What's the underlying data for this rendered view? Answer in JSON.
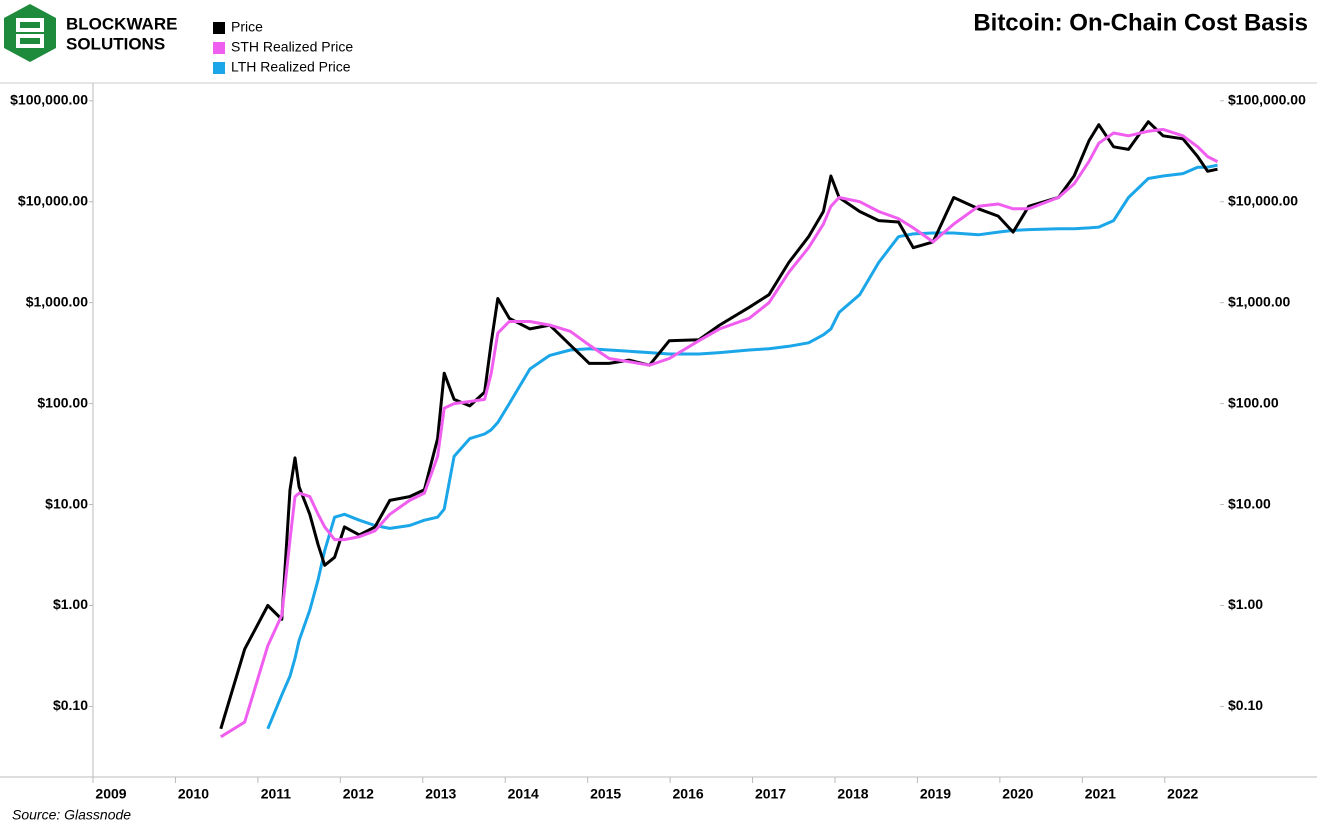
{
  "logo": {
    "line1": "BLOCKWARE",
    "line2": "SOLUTIONS"
  },
  "chart_data": {
    "type": "line",
    "title": "Bitcoin: On-Chain Cost Basis",
    "source": "Source: Glassnode",
    "log_scale": true,
    "grid": false,
    "x": [
      2010.55,
      2010.84,
      2011.12,
      2011.29,
      2011.39,
      2011.45,
      2011.5,
      2011.63,
      2011.73,
      2011.81,
      2011.93,
      2012.05,
      2012.23,
      2012.42,
      2012.6,
      2012.84,
      2013.02,
      2013.18,
      2013.26,
      2013.38,
      2013.57,
      2013.75,
      2013.83,
      2013.91,
      2014.05,
      2014.3,
      2014.54,
      2014.79,
      2015.02,
      2015.26,
      2015.5,
      2015.75,
      2015.99,
      2016.35,
      2016.6,
      2016.96,
      2017.2,
      2017.44,
      2017.68,
      2017.86,
      2017.95,
      2018.05,
      2018.3,
      2018.53,
      2018.77,
      2018.95,
      2019.19,
      2019.44,
      2019.74,
      2019.98,
      2020.16,
      2020.35,
      2020.71,
      2020.9,
      2021.08,
      2021.2,
      2021.38,
      2021.56,
      2021.8,
      2021.98,
      2022.22,
      2022.4,
      2022.52,
      2022.64
    ],
    "series": [
      {
        "name": "Price",
        "color": "#000000",
        "values": [
          0.06,
          0.37,
          1.0,
          0.73,
          14,
          29,
          15,
          8,
          4,
          2.5,
          3,
          6,
          5,
          6,
          11,
          12,
          14,
          45,
          200,
          110,
          95,
          130,
          400,
          1100,
          700,
          550,
          600,
          380,
          250,
          250,
          270,
          240,
          420,
          430,
          600,
          900,
          1200,
          2500,
          4500,
          8000,
          18000,
          11000,
          8000,
          6500,
          6300,
          3500,
          4000,
          11000,
          8500,
          7200,
          5000,
          9000,
          11000,
          18000,
          40000,
          58000,
          35000,
          33000,
          62000,
          45000,
          42000,
          28000,
          20000,
          21000
        ]
      },
      {
        "name": "STH Realized Price",
        "color": "#f05ef0",
        "values": [
          0.05,
          0.07,
          0.4,
          0.8,
          4.5,
          12,
          13,
          12,
          8,
          6,
          4.5,
          4.5,
          4.8,
          5.5,
          8,
          11,
          13,
          30,
          90,
          100,
          105,
          110,
          200,
          500,
          650,
          650,
          600,
          520,
          380,
          280,
          260,
          240,
          280,
          420,
          550,
          700,
          1000,
          2000,
          3500,
          6000,
          9000,
          11000,
          10000,
          8000,
          6800,
          5500,
          4000,
          6000,
          9000,
          9500,
          8500,
          8500,
          11000,
          15000,
          25000,
          38000,
          48000,
          45000,
          50000,
          52000,
          45000,
          35000,
          28000,
          25000
        ]
      },
      {
        "name": "LTH Realized Price",
        "color": "#1aa6e8",
        "values": [
          null,
          null,
          0.06,
          0.13,
          0.2,
          0.3,
          0.45,
          0.9,
          1.8,
          3.5,
          7.5,
          8,
          7,
          6.2,
          5.8,
          6.2,
          7,
          7.5,
          9,
          30,
          45,
          50,
          55,
          65,
          100,
          220,
          300,
          340,
          350,
          340,
          330,
          320,
          310,
          310,
          320,
          340,
          350,
          370,
          400,
          480,
          550,
          800,
          1200,
          2500,
          4500,
          4800,
          4900,
          4900,
          4700,
          5000,
          5200,
          5300,
          5400,
          5400,
          5500,
          5600,
          6500,
          11000,
          17000,
          18000,
          19000,
          22000,
          22000,
          23000
        ]
      }
    ],
    "xlim": [
      2009,
      2022.67
    ],
    "xticks": [
      2009,
      2010,
      2011,
      2012,
      2013,
      2014,
      2015,
      2016,
      2017,
      2018,
      2019,
      2020,
      2021,
      2022
    ],
    "ylim": [
      0.02,
      150000
    ],
    "yticks": [
      {
        "value": 0.1,
        "label": "$0.10"
      },
      {
        "value": 1,
        "label": "$1.00"
      },
      {
        "value": 10,
        "label": "$10.00"
      },
      {
        "value": 100,
        "label": "$100.00"
      },
      {
        "value": 1000,
        "label": "$1,000.00"
      },
      {
        "value": 10000,
        "label": "$10,000.00"
      },
      {
        "value": 100000,
        "label": "$100,000.00"
      }
    ],
    "y2lim": [
      0.02,
      150000
    ],
    "y2ticks": [
      {
        "value": 0.1,
        "label": "$0.10"
      },
      {
        "value": 1,
        "label": "$1.00"
      },
      {
        "value": 10,
        "label": "$10.00"
      },
      {
        "value": 100,
        "label": "$100.00"
      },
      {
        "value": 1000,
        "label": "$1,000.00"
      },
      {
        "value": 10000,
        "label": "$10,000.00"
      },
      {
        "value": 100000,
        "label": "$100,000.00"
      }
    ]
  }
}
